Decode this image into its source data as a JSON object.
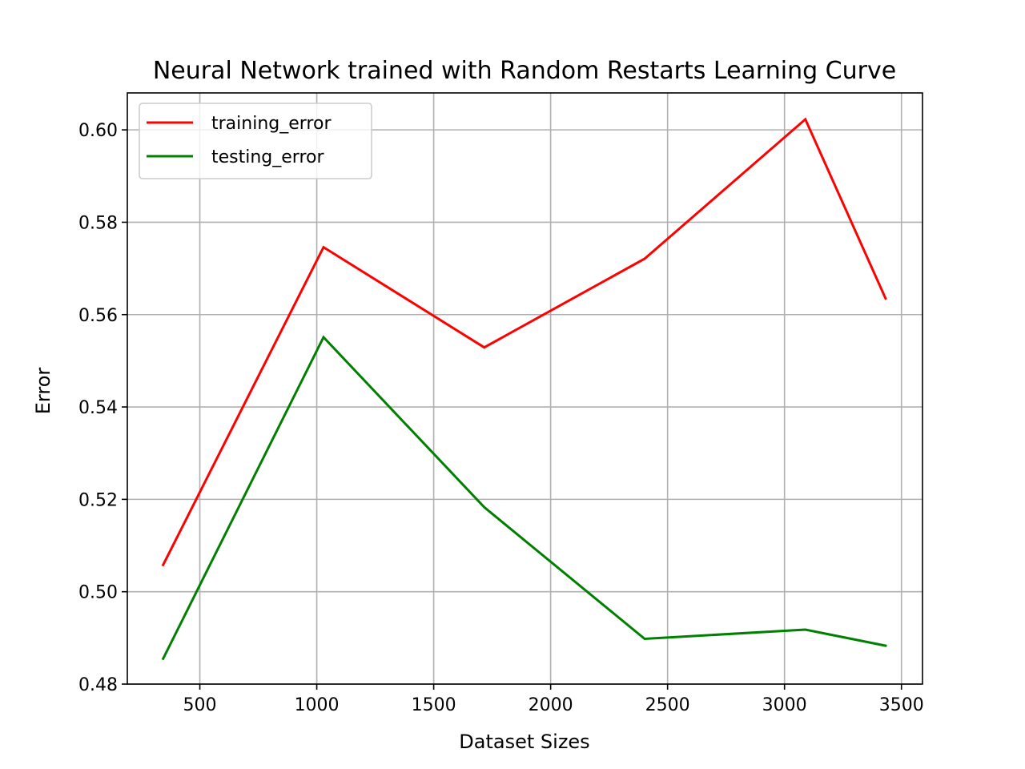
{
  "chart_data": {
    "type": "line",
    "title": "Neural Network trained with Random Restarts Learning Curve",
    "xlabel": "Dataset Sizes",
    "ylabel": "Error",
    "xlim": [
      190,
      3590
    ],
    "ylim": [
      0.48,
      0.608
    ],
    "xticks": [
      500,
      1000,
      1500,
      2000,
      2500,
      3000,
      3500
    ],
    "xtick_labels": [
      "500",
      "1000",
      "1500",
      "2000",
      "2500",
      "3000",
      "3500"
    ],
    "yticks": [
      0.48,
      0.5,
      0.52,
      0.54,
      0.56,
      0.58,
      0.6
    ],
    "ytick_labels": [
      "0.48",
      "0.50",
      "0.52",
      "0.54",
      "0.56",
      "0.58",
      "0.60"
    ],
    "grid": true,
    "legend_position": "upper-left",
    "x": [
      343,
      1029,
      1716,
      2402,
      3089,
      3432
    ],
    "series": [
      {
        "name": "training_error",
        "color": "#ff0000",
        "values": [
          0.5058,
          0.5746,
          0.5529,
          0.5721,
          0.6023,
          0.5635
        ]
      },
      {
        "name": "testing_error",
        "color": "#008000",
        "values": [
          0.4855,
          0.5551,
          0.5183,
          0.4898,
          0.4918,
          0.4883
        ]
      }
    ]
  }
}
